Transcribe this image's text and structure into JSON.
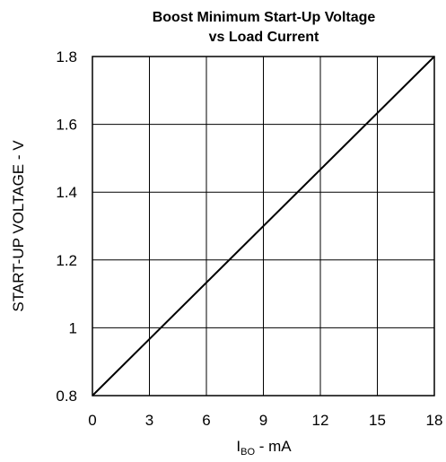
{
  "chart_data": {
    "type": "line",
    "title": [
      "Boost Minimum Start-Up Voltage",
      "vs Load Current"
    ],
    "xlabel": {
      "main": "I",
      "subscript": "BO",
      "suffix": " - mA"
    },
    "ylabel": "START-UP VOLTAGE - V",
    "xlim": [
      0,
      18
    ],
    "ylim": [
      0.8,
      1.8
    ],
    "x_ticks": [
      0,
      3,
      6,
      9,
      12,
      15,
      18
    ],
    "x_tick_labels": [
      "0",
      "3",
      "6",
      "9",
      "12",
      "15",
      "18"
    ],
    "y_ticks": [
      0.8,
      1.0,
      1.2,
      1.4,
      1.6,
      1.8
    ],
    "y_tick_labels": [
      "0.8",
      "1",
      "1.2",
      "1.4",
      "1.6",
      "1.8"
    ],
    "grid": true,
    "legend": "none",
    "series": [
      {
        "x": [
          0,
          18
        ],
        "y": [
          0.8,
          1.8
        ]
      }
    ],
    "colors": {
      "line": "#000000",
      "grid": "#000000",
      "background": "#ffffff"
    }
  }
}
